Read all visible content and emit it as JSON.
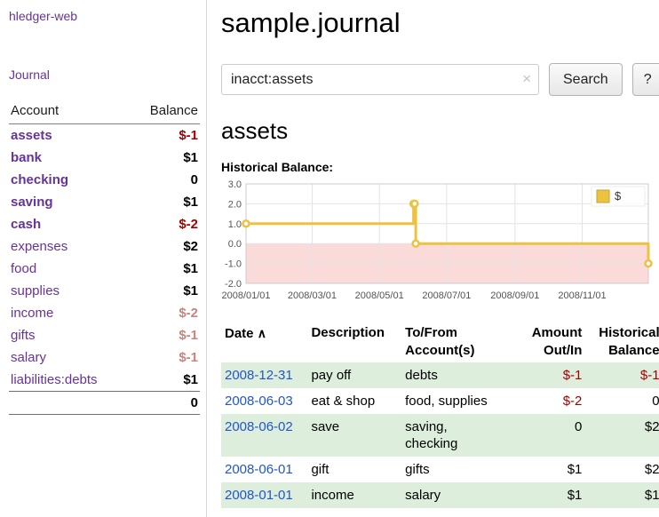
{
  "app": {
    "title": "hledger-web"
  },
  "sidebar": {
    "nav": [
      {
        "label": "Journal"
      }
    ],
    "accounts_header": {
      "account": "Account",
      "balance": "Balance"
    },
    "accounts": [
      {
        "name": "assets",
        "indent": 1,
        "balance": "$-1",
        "bold": true,
        "negative": true,
        "faded": false
      },
      {
        "name": "bank",
        "indent": 2,
        "balance": "$1",
        "bold": true,
        "negative": false,
        "faded": false
      },
      {
        "name": "checking",
        "indent": 3,
        "balance": "0",
        "bold": true,
        "negative": false,
        "faded": false
      },
      {
        "name": "saving",
        "indent": 3,
        "balance": "$1",
        "bold": true,
        "negative": false,
        "faded": false
      },
      {
        "name": "cash",
        "indent": 2,
        "balance": "$-2",
        "bold": true,
        "negative": true,
        "faded": false
      },
      {
        "name": "expenses",
        "indent": 1,
        "balance": "$2",
        "bold": false,
        "negative": false,
        "faded": false
      },
      {
        "name": "food",
        "indent": 2,
        "balance": "$1",
        "bold": false,
        "negative": false,
        "faded": false
      },
      {
        "name": "supplies",
        "indent": 2,
        "balance": "$1",
        "bold": false,
        "negative": false,
        "faded": false
      },
      {
        "name": "income",
        "indent": 1,
        "balance": "$-2",
        "bold": false,
        "negative": true,
        "faded": true
      },
      {
        "name": "gifts",
        "indent": 2,
        "balance": "$-1",
        "bold": false,
        "negative": true,
        "faded": true
      },
      {
        "name": "salary",
        "indent": 2,
        "balance": "$-1",
        "bold": false,
        "negative": true,
        "faded": true
      },
      {
        "name": "liabilities:debts",
        "indent": 1,
        "balance": "$1",
        "bold": false,
        "negative": false,
        "faded": false
      }
    ],
    "total": "0"
  },
  "main": {
    "title": "sample.journal",
    "search": {
      "value": "inacct:assets",
      "clear_icon": "×",
      "search_button": "Search",
      "help_button": "?"
    },
    "account_heading": "assets",
    "chart_label": "Historical Balance:"
  },
  "chart_data": {
    "type": "line",
    "style": "step",
    "title": "Historical Balance",
    "legend_label": "$",
    "legend_position": "top-right",
    "line_color": "#edc240",
    "negative_region_color": "#fbdada",
    "grid": true,
    "x_ticks": [
      "2008/01/01",
      "2008/03/01",
      "2008/05/01",
      "2008/07/01",
      "2008/09/01",
      "2008/11/01"
    ],
    "y_ticks": [
      "3.0",
      "2.0",
      "1.0",
      "0.0",
      "-1.0",
      "-2.0"
    ],
    "ylim": [
      -2,
      3
    ],
    "x_range": [
      "2008-01-01",
      "2008-12-31"
    ],
    "points": [
      {
        "date": "2008-01-01",
        "value": 1
      },
      {
        "date": "2008-06-01",
        "value": 2
      },
      {
        "date": "2008-06-02",
        "value": 2
      },
      {
        "date": "2008-06-03",
        "value": 0
      },
      {
        "date": "2008-12-31",
        "value": -1
      }
    ]
  },
  "register": {
    "headers": [
      "Date",
      "Description",
      "To/From Account(s)",
      "Amount Out/In",
      "Historical Balance"
    ],
    "sort_icon": "∧",
    "rows": [
      {
        "date": "2008-12-31",
        "description": "pay off",
        "accounts": [
          "debts"
        ],
        "amount": "$-1",
        "balance": "$-1"
      },
      {
        "date": "2008-06-03",
        "description": "eat & shop",
        "accounts": [
          "food, supplies"
        ],
        "amount": "$-2",
        "balance": "0"
      },
      {
        "date": "2008-06-02",
        "description": "save",
        "accounts": [
          "saving,",
          "checking"
        ],
        "amount": "0",
        "balance": "$2"
      },
      {
        "date": "2008-06-01",
        "description": "gift",
        "accounts": [
          "gifts"
        ],
        "amount": "$1",
        "balance": "$2"
      },
      {
        "date": "2008-01-01",
        "description": "income",
        "accounts": [
          "salary"
        ],
        "amount": "$1",
        "balance": "$1"
      }
    ]
  }
}
